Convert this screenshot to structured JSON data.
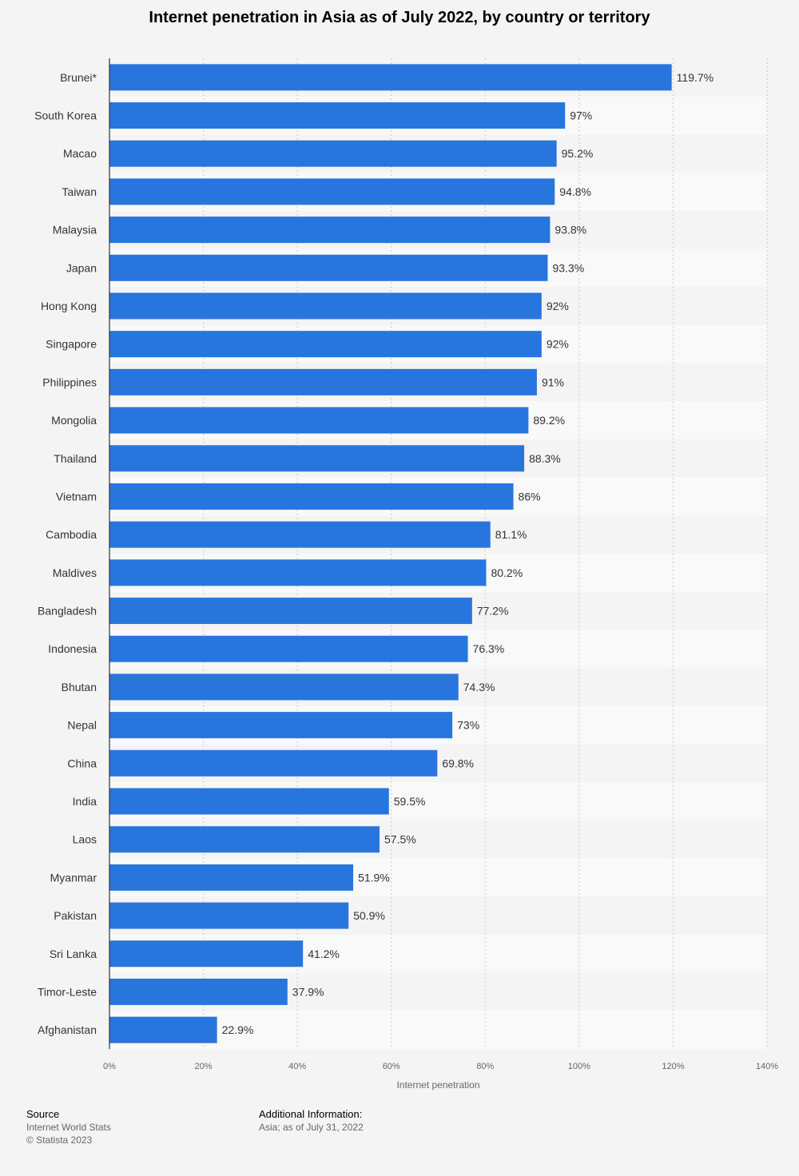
{
  "chart_data": {
    "type": "bar",
    "orientation": "horizontal",
    "title": "Internet penetration in Asia as of July 2022, by country or territory",
    "xlabel": "Internet penetration",
    "ylabel": "",
    "xlim": [
      0,
      140
    ],
    "ticks": [
      0,
      20,
      40,
      60,
      80,
      100,
      120,
      140
    ],
    "tick_labels": [
      "0%",
      "20%",
      "40%",
      "60%",
      "80%",
      "100%",
      "120%",
      "140%"
    ],
    "categories": [
      "Brunei*",
      "South Korea",
      "Macao",
      "Taiwan",
      "Malaysia",
      "Japan",
      "Hong Kong",
      "Singapore",
      "Philippines",
      "Mongolia",
      "Thailand",
      "Vietnam",
      "Cambodia",
      "Maldives",
      "Bangladesh",
      "Indonesia",
      "Bhutan",
      "Nepal",
      "China",
      "India",
      "Laos",
      "Myanmar",
      "Pakistan",
      "Sri Lanka",
      "Timor-Leste",
      "Afghanistan"
    ],
    "values": [
      119.7,
      97,
      95.2,
      94.8,
      93.8,
      93.3,
      92,
      92,
      91,
      89.2,
      88.3,
      86,
      81.1,
      80.2,
      77.2,
      76.3,
      74.3,
      73,
      69.8,
      59.5,
      57.5,
      51.9,
      50.9,
      41.2,
      37.9,
      22.9
    ],
    "value_labels": [
      "119.7%",
      "97%",
      "95.2%",
      "94.8%",
      "93.8%",
      "93.3%",
      "92%",
      "92%",
      "91%",
      "89.2%",
      "88.3%",
      "86%",
      "81.1%",
      "80.2%",
      "77.2%",
      "76.3%",
      "74.3%",
      "73%",
      "69.8%",
      "59.5%",
      "57.5%",
      "51.9%",
      "50.9%",
      "41.2%",
      "37.9%",
      "22.9%"
    ],
    "bar_color": "#2876dd",
    "grid": true
  },
  "footer": {
    "source_heading": "Source",
    "source_name": "Internet World Stats",
    "copyright": "© Statista 2023",
    "additional_heading": "Additional Information:",
    "additional_text": "Asia; as of July 31, 2022"
  }
}
